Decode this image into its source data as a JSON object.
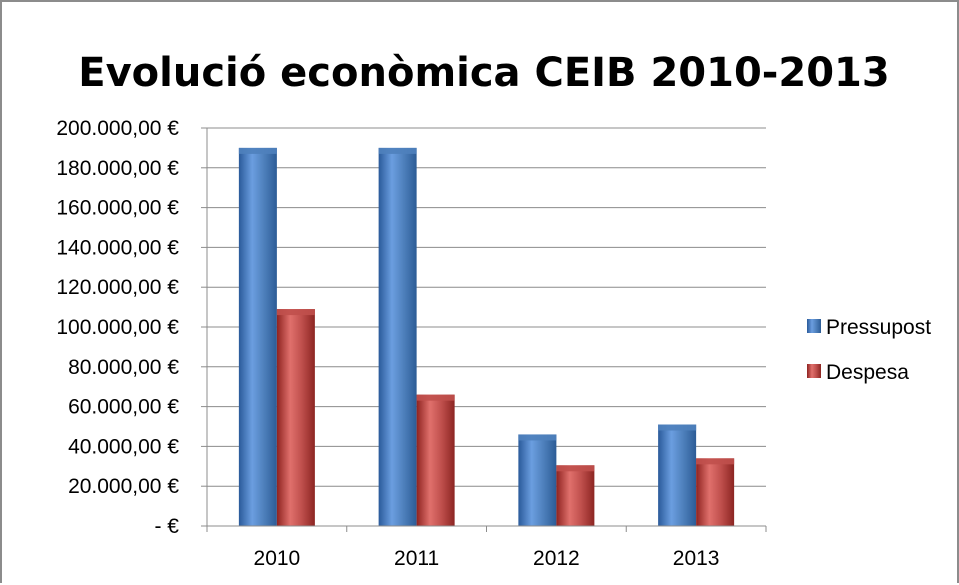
{
  "chart_data": {
    "type": "bar",
    "title": "Evolució econòmica CEIB 2010-2013",
    "xlabel": "",
    "ylabel": "",
    "categories": [
      "2010",
      "2011",
      "2012",
      "2013"
    ],
    "series": [
      {
        "name": "Pressupost",
        "color": "#4f81bd",
        "values": [
          190000,
          190000,
          46000,
          51000
        ]
      },
      {
        "name": "Despesa",
        "color": "#c0504d",
        "values": [
          109000,
          66000,
          30500,
          34000
        ]
      }
    ],
    "ylim": [
      0,
      200000
    ],
    "yticks": [
      0,
      20000,
      40000,
      60000,
      80000,
      100000,
      120000,
      140000,
      160000,
      180000,
      200000
    ],
    "ytick_labels": [
      "-   €",
      "20.000,00 €",
      "40.000,00 €",
      "60.000,00 €",
      "80.000,00 €",
      "100.000,00 €",
      "120.000,00 €",
      "140.000,00 €",
      "160.000,00 €",
      "180.000,00 €",
      "200.000,00 €"
    ],
    "grid": true,
    "legend_position": "right"
  }
}
